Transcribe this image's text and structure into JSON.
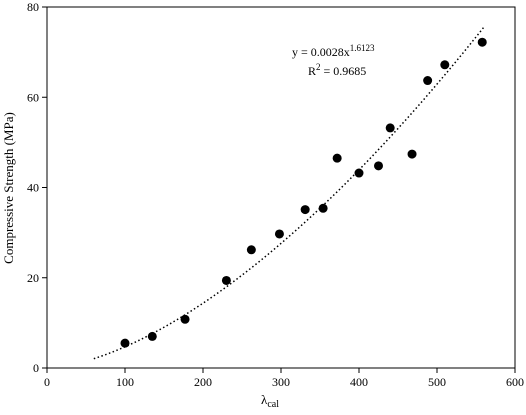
{
  "chart_data": {
    "type": "scatter",
    "title": "",
    "xlabel_main": "λ",
    "xlabel_sub": "cal",
    "ylabel": "Compressive  Strength  (MPa)",
    "xlim": [
      0,
      600
    ],
    "ylim": [
      0,
      80
    ],
    "x_ticks": [
      0,
      100,
      200,
      300,
      400,
      500,
      600
    ],
    "y_ticks": [
      0,
      20,
      40,
      60,
      80
    ],
    "grid": false,
    "legend": "none",
    "series": [
      {
        "marker": "filled-circle",
        "color": "#000000",
        "x": [
          100,
          135,
          177,
          230,
          262,
          298,
          331,
          354,
          372,
          400,
          425,
          440,
          468,
          488,
          510,
          558
        ],
        "y": [
          5.5,
          7.0,
          10.8,
          19.4,
          26.2,
          29.7,
          35.1,
          35.4,
          46.5,
          43.2,
          44.8,
          53.2,
          47.4,
          63.7,
          67.2,
          72.2
        ]
      }
    ],
    "trendline": {
      "type": "power",
      "style": "dotted",
      "coefficient": 0.0028,
      "exponent": 1.6123,
      "x_range": [
        60,
        560
      ]
    },
    "annotations": {
      "equation_prefix": "y = 0.0028x",
      "equation_exponent": "1.6123",
      "r_squared_prefix": "R",
      "r_squared_exp": "2",
      "r_squared_value": " = 0.9685"
    }
  }
}
